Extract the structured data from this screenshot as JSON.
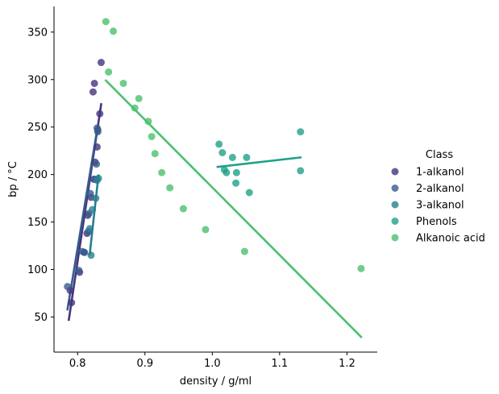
{
  "chart_data": {
    "type": "scatter",
    "xlabel": "density / g/ml",
    "ylabel": "bp / °C",
    "xlim": [
      0.765,
      1.245
    ],
    "ylim": [
      13,
      377
    ],
    "xticks": [
      0.8,
      0.9,
      1.0,
      1.1,
      1.2
    ],
    "xtick_labels": [
      "0.8",
      "0.9",
      "1.0",
      "1.1",
      "1.2"
    ],
    "yticks": [
      50,
      100,
      150,
      200,
      250,
      300,
      350
    ],
    "ytick_labels": [
      "50",
      "100",
      "150",
      "200",
      "250",
      "300",
      "350"
    ],
    "grid": false,
    "legend": {
      "title": "Class",
      "placement": "right"
    },
    "series": [
      {
        "name": "1-alkanol",
        "color": "#46337e",
        "points": [
          [
            0.791,
            65
          ],
          [
            0.789,
            78
          ],
          [
            0.803,
            97
          ],
          [
            0.81,
            118
          ],
          [
            0.814,
            138
          ],
          [
            0.815,
            157
          ],
          [
            0.82,
            176
          ],
          [
            0.824,
            195
          ],
          [
            0.826,
            213
          ],
          [
            0.829,
            229
          ],
          [
            0.83,
            247
          ],
          [
            0.833,
            264
          ],
          [
            0.823,
            287
          ],
          [
            0.825,
            296
          ],
          [
            0.835,
            318
          ]
        ],
        "fit": [
          [
            0.787,
            47
          ],
          [
            0.835,
            274
          ]
        ]
      },
      {
        "name": "2-alkanol",
        "color": "#365c8d",
        "points": [
          [
            0.785,
            82
          ],
          [
            0.802,
            99
          ],
          [
            0.807,
            119
          ],
          [
            0.81,
            118
          ],
          [
            0.816,
            140
          ],
          [
            0.817,
            159
          ],
          [
            0.819,
            180
          ],
          [
            0.826,
            195
          ],
          [
            0.828,
            211
          ],
          [
            0.829,
            249
          ],
          [
            0.83,
            245
          ]
        ],
        "fit": [
          [
            0.785,
            58
          ],
          [
            0.83,
            251
          ]
        ]
      },
      {
        "name": "3-alkanol",
        "color": "#277f8e",
        "points": [
          [
            0.82,
            115
          ],
          [
            0.818,
            143
          ],
          [
            0.822,
            163
          ],
          [
            0.827,
            175
          ],
          [
            0.829,
            194
          ],
          [
            0.831,
            196
          ]
        ],
        "fit": [
          [
            0.818,
            116
          ],
          [
            0.831,
            199
          ]
        ]
      },
      {
        "name": "Phenols",
        "color": "#1fa187",
        "points": [
          [
            1.01,
            232
          ],
          [
            1.015,
            223
          ],
          [
            1.018,
            205
          ],
          [
            1.021,
            202
          ],
          [
            1.03,
            218
          ],
          [
            1.035,
            191
          ],
          [
            1.036,
            202
          ],
          [
            1.051,
            218
          ],
          [
            1.055,
            181
          ],
          [
            1.131,
            245
          ],
          [
            1.131,
            204
          ]
        ],
        "fit": [
          [
            1.008,
            208
          ],
          [
            1.131,
            218
          ]
        ]
      },
      {
        "name": "Alkanoic acid",
        "color": "#4ac16d",
        "points": [
          [
            0.842,
            361
          ],
          [
            0.853,
            351
          ],
          [
            0.846,
            308
          ],
          [
            0.868,
            296
          ],
          [
            0.885,
            270
          ],
          [
            0.891,
            280
          ],
          [
            0.905,
            256
          ],
          [
            0.91,
            240
          ],
          [
            0.915,
            222
          ],
          [
            0.925,
            202
          ],
          [
            0.937,
            186
          ],
          [
            0.957,
            164
          ],
          [
            0.99,
            142
          ],
          [
            1.048,
            119
          ],
          [
            1.221,
            101
          ]
        ],
        "fit": [
          [
            0.842,
            299
          ],
          [
            1.221,
            29
          ]
        ]
      }
    ]
  }
}
